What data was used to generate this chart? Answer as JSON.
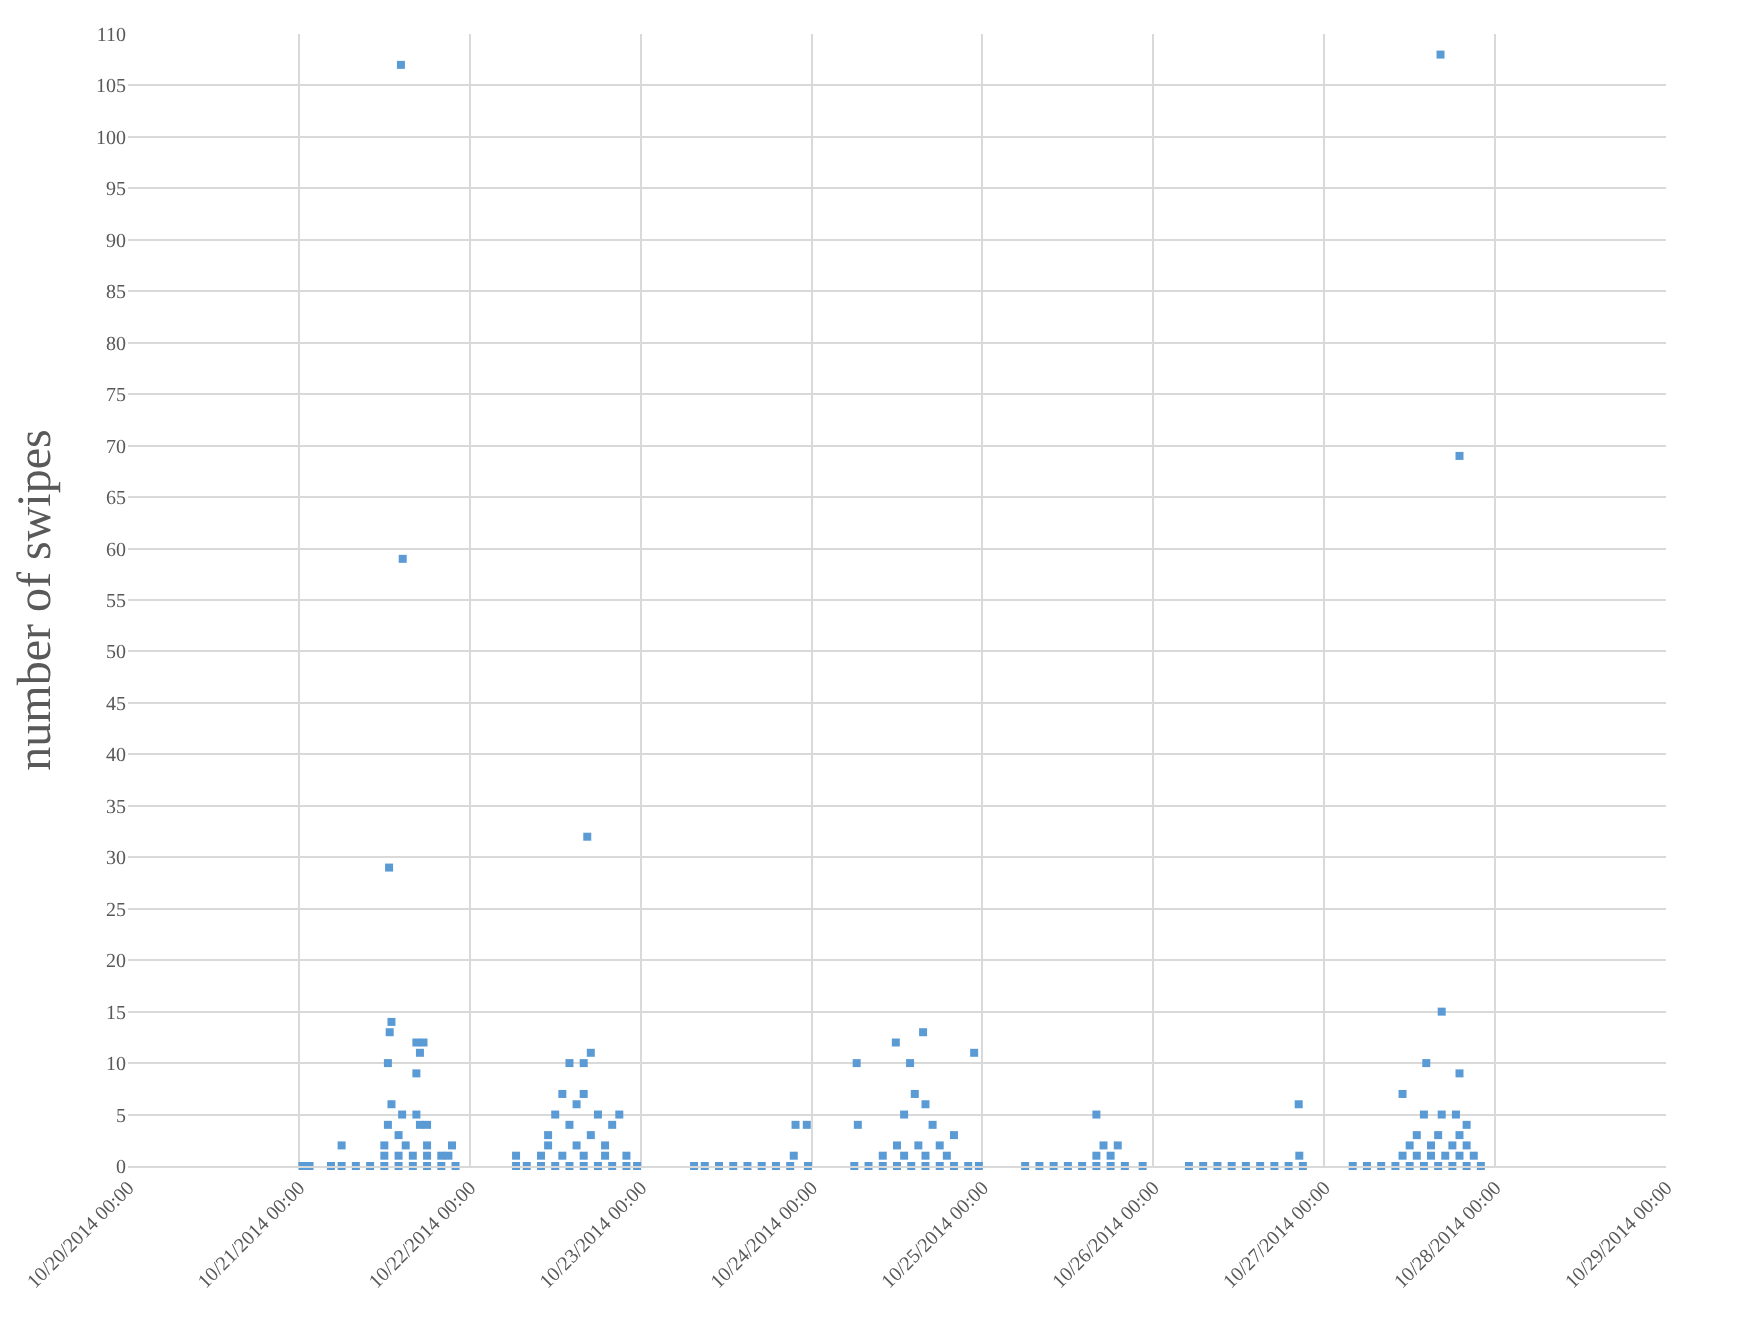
{
  "chart_data": {
    "type": "scatter",
    "ylabel": "number of swipes",
    "marker": "square",
    "grid": true,
    "xlim": [
      "2014-10-20T00:00",
      "2014-10-29T00:00"
    ],
    "xticks": [
      {
        "value": "2014-10-20T00:00",
        "label": "10/20/2014 00:00"
      },
      {
        "value": "2014-10-21T00:00",
        "label": "10/21/2014 00:00"
      },
      {
        "value": "2014-10-22T00:00",
        "label": "10/22/2014 00:00"
      },
      {
        "value": "2014-10-23T00:00",
        "label": "10/23/2014 00:00"
      },
      {
        "value": "2014-10-24T00:00",
        "label": "10/24/2014 00:00"
      },
      {
        "value": "2014-10-25T00:00",
        "label": "10/25/2014 00:00"
      },
      {
        "value": "2014-10-26T00:00",
        "label": "10/26/2014 00:00"
      },
      {
        "value": "2014-10-27T00:00",
        "label": "10/27/2014 00:00"
      },
      {
        "value": "2014-10-28T00:00",
        "label": "10/28/2014 00:00"
      },
      {
        "value": "2014-10-29T00:00",
        "label": "10/29/2014 00:00"
      }
    ],
    "ylim": [
      0,
      110
    ],
    "yticks": [
      0,
      5,
      10,
      15,
      20,
      25,
      30,
      35,
      40,
      45,
      50,
      55,
      60,
      65,
      70,
      75,
      80,
      85,
      90,
      95,
      100,
      105,
      110
    ],
    "series": [
      {
        "color": "#5b9bd5",
        "x": [
          "2014-10-21T00:30",
          "2014-10-21T01:30",
          "2014-10-21T04:30",
          "2014-10-21T06:00",
          "2014-10-21T06:00",
          "2014-10-21T08:00",
          "2014-10-21T10:00",
          "2014-10-21T12:00",
          "2014-10-21T14:00",
          "2014-10-21T16:00",
          "2014-10-21T18:00",
          "2014-10-21T20:00",
          "2014-10-21T22:00",
          "2014-10-21T12:00",
          "2014-10-21T14:00",
          "2014-10-21T16:00",
          "2014-10-21T18:00",
          "2014-10-21T20:00",
          "2014-10-21T21:00",
          "2014-10-21T12:00",
          "2014-10-21T15:00",
          "2014-10-21T18:00",
          "2014-10-21T21:30",
          "2014-10-21T12:30",
          "2014-10-21T14:00",
          "2014-10-21T17:00",
          "2014-10-21T13:00",
          "2014-10-21T14:30",
          "2014-10-21T16:30",
          "2014-10-21T18:00",
          "2014-10-21T12:30",
          "2014-10-21T12:45",
          "2014-10-21T13:00",
          "2014-10-21T16:30",
          "2014-10-21T17:00",
          "2014-10-21T17:30",
          "2014-10-21T16:30",
          "2014-10-21T12:40",
          "2014-10-21T14:35",
          "2014-10-21T14:20",
          "2014-10-22T06:30",
          "2014-10-22T08:00",
          "2014-10-22T10:00",
          "2014-10-22T12:00",
          "2014-10-22T14:00",
          "2014-10-22T16:00",
          "2014-10-22T18:00",
          "2014-10-22T20:00",
          "2014-10-22T22:00",
          "2014-10-22T23:30",
          "2014-10-22T06:30",
          "2014-10-22T10:00",
          "2014-10-22T13:00",
          "2014-10-22T16:00",
          "2014-10-22T19:00",
          "2014-10-22T22:00",
          "2014-10-22T11:00",
          "2014-10-22T15:00",
          "2014-10-22T19:00",
          "2014-10-22T11:00",
          "2014-10-22T14:00",
          "2014-10-22T17:00",
          "2014-10-22T20:00",
          "2014-10-22T12:00",
          "2014-10-22T15:00",
          "2014-10-22T18:00",
          "2014-10-22T21:00",
          "2014-10-22T13:00",
          "2014-10-22T16:00",
          "2014-10-22T14:00",
          "2014-10-22T16:00",
          "2014-10-22T17:00",
          "2014-10-22T16:30",
          "2014-10-23T07:30",
          "2014-10-23T09:00",
          "2014-10-23T11:00",
          "2014-10-23T13:00",
          "2014-10-23T15:00",
          "2014-10-23T17:00",
          "2014-10-23T19:00",
          "2014-10-23T21:00",
          "2014-10-23T23:30",
          "2014-10-23T21:30",
          "2014-10-23T21:45",
          "2014-10-23T23:20",
          "2014-10-24T06:00",
          "2014-10-24T08:00",
          "2014-10-24T10:00",
          "2014-10-24T12:00",
          "2014-10-24T14:00",
          "2014-10-24T16:00",
          "2014-10-24T18:00",
          "2014-10-24T20:00",
          "2014-10-24T22:00",
          "2014-10-24T23:30",
          "2014-10-24T10:00",
          "2014-10-24T13:00",
          "2014-10-24T16:00",
          "2014-10-24T19:00",
          "2014-10-24T12:00",
          "2014-10-24T15:00",
          "2014-10-24T18:00",
          "2014-10-24T06:30",
          "2014-10-24T13:00",
          "2014-10-24T14:30",
          "2014-10-24T17:00",
          "2014-10-24T16:00",
          "2014-10-24T20:00",
          "2014-10-24T06:20",
          "2014-10-24T11:50",
          "2014-10-24T15:40",
          "2014-10-24T22:50",
          "2014-10-24T13:50",
          "2014-10-25T06:00",
          "2014-10-25T08:00",
          "2014-10-25T10:00",
          "2014-10-25T12:00",
          "2014-10-25T14:00",
          "2014-10-25T16:00",
          "2014-10-25T18:00",
          "2014-10-25T20:00",
          "2014-10-25T22:30",
          "2014-10-25T16:00",
          "2014-10-25T18:00",
          "2014-10-25T17:00",
          "2014-10-25T19:00",
          "2014-10-25T16:00",
          "2014-10-26T05:00",
          "2014-10-26T07:00",
          "2014-10-26T09:00",
          "2014-10-26T11:00",
          "2014-10-26T13:00",
          "2014-10-26T15:00",
          "2014-10-26T17:00",
          "2014-10-26T19:00",
          "2014-10-26T21:00",
          "2014-10-26T20:30",
          "2014-10-26T20:25",
          "2014-10-27T04:00",
          "2014-10-27T06:00",
          "2014-10-27T08:00",
          "2014-10-27T10:00",
          "2014-10-27T12:00",
          "2014-10-27T14:00",
          "2014-10-27T16:00",
          "2014-10-27T18:00",
          "2014-10-27T20:00",
          "2014-10-27T22:00",
          "2014-10-27T11:00",
          "2014-10-27T13:00",
          "2014-10-27T15:00",
          "2014-10-27T17:00",
          "2014-10-27T19:00",
          "2014-10-27T21:00",
          "2014-10-27T12:00",
          "2014-10-27T15:00",
          "2014-10-27T18:00",
          "2014-10-27T20:00",
          "2014-10-27T13:00",
          "2014-10-27T16:00",
          "2014-10-27T19:00",
          "2014-10-27T14:00",
          "2014-10-27T16:30",
          "2014-10-27T18:30",
          "2014-10-27T20:00",
          "2014-10-27T11:00",
          "2014-10-27T14:20",
          "2014-10-27T19:00",
          "2014-10-27T16:30",
          "2014-10-27T19:00",
          "2014-10-27T16:20"
        ],
        "values": [
          0,
          0,
          0,
          2,
          0,
          0,
          0,
          0,
          0,
          0,
          0,
          0,
          0,
          1,
          1,
          1,
          1,
          1,
          1,
          2,
          2,
          2,
          2,
          4,
          3,
          4,
          6,
          5,
          5,
          4,
          10,
          13,
          14,
          12,
          11,
          12,
          9,
          29,
          59,
          107,
          0,
          0,
          0,
          0,
          0,
          0,
          0,
          0,
          0,
          0,
          1,
          1,
          1,
          1,
          1,
          1,
          2,
          2,
          2,
          3,
          4,
          3,
          4,
          5,
          6,
          5,
          5,
          7,
          7,
          10,
          10,
          11,
          32,
          0,
          0,
          0,
          0,
          0,
          0,
          0,
          0,
          0,
          1,
          4,
          4,
          0,
          0,
          0,
          0,
          0,
          0,
          0,
          0,
          0,
          0,
          1,
          1,
          1,
          1,
          2,
          2,
          2,
          4,
          5,
          7,
          4,
          6,
          3,
          10,
          12,
          13,
          11,
          10,
          0,
          0,
          0,
          0,
          0,
          0,
          0,
          0,
          0,
          1,
          1,
          2,
          2,
          5,
          0,
          0,
          0,
          0,
          0,
          0,
          0,
          0,
          0,
          1,
          6,
          0,
          0,
          0,
          0,
          0,
          0,
          0,
          0,
          0,
          0,
          1,
          1,
          1,
          1,
          1,
          1,
          2,
          2,
          2,
          2,
          3,
          3,
          3,
          5,
          5,
          5,
          4,
          7,
          10,
          9,
          15,
          69,
          108
        ]
      }
    ]
  }
}
